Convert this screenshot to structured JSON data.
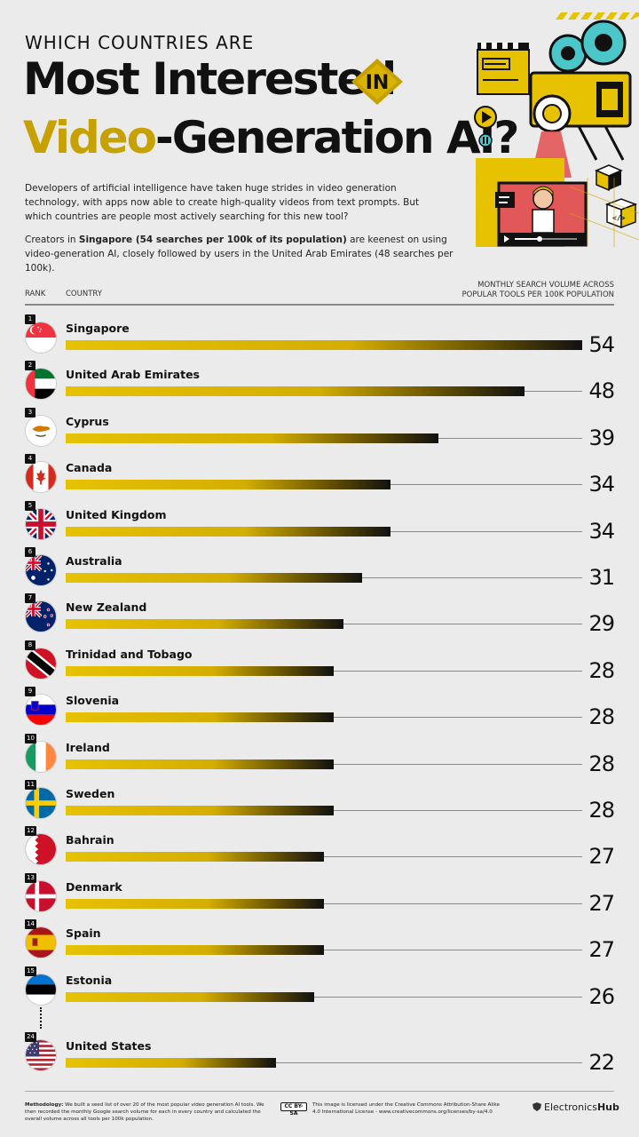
{
  "header": {
    "kicker": "WHICH COUNTRIES ARE",
    "title_line1": "Most Interested",
    "title_in": "IN",
    "title_accent": "Video",
    "title_rest": "-Generation AI?",
    "intro": "Developers of artificial intelligence have taken huge strides in video generation technology, with apps now able to create high-quality videos from text prompts. But which countries are people most actively searching for this new tool?",
    "intro2_pre": "Creators in ",
    "intro2_bold": "Singapore (54 searches per 100k of its population)",
    "intro2_post": " are keenest on using video-generation AI, closely followed by users in the United Arab Emirates (48 searches per 100k)."
  },
  "columns": {
    "rank": "RANK",
    "country": "COUNTRY",
    "value_line1": "MONTHLY SEARCH VOLUME ACROSS",
    "value_line2": "POPULAR TOOLS PER 100K POPULATION"
  },
  "chart_data": {
    "type": "bar",
    "orientation": "horizontal",
    "title": "Most Interested in Video-Generation AI?",
    "xlabel": "Monthly search volume across popular tools per 100k population",
    "ylabel": "Country",
    "xlim": [
      0,
      54
    ],
    "categories": [
      "Singapore",
      "United Arab Emirates",
      "Cyprus",
      "Canada",
      "United Kingdom",
      "Australia",
      "New Zealand",
      "Trinidad and Tobago",
      "Slovenia",
      "Ireland",
      "Sweden",
      "Bahrain",
      "Denmark",
      "Spain",
      "Estonia",
      "United States"
    ],
    "ranks": [
      "1",
      "2",
      "3",
      "4",
      "5",
      "6",
      "7",
      "8",
      "9",
      "10",
      "11",
      "12",
      "13",
      "14",
      "15",
      "24"
    ],
    "values": [
      54,
      48,
      39,
      34,
      34,
      31,
      29,
      28,
      28,
      28,
      28,
      27,
      27,
      27,
      26,
      22
    ],
    "flags": [
      "singapore-flag",
      "uae-flag",
      "cyprus-flag",
      "canada-flag",
      "uk-flag",
      "australia-flag",
      "new-zealand-flag",
      "trinidad-flag",
      "slovenia-flag",
      "ireland-flag",
      "sweden-flag",
      "bahrain-flag",
      "denmark-flag",
      "spain-flag",
      "estonia-flag",
      "usa-flag"
    ]
  },
  "footer": {
    "method_label": "Methodology:",
    "method_text": " We built a seed list of over 20 of the most popular video generation AI tools. We then recorded the monthly Google search volume for each in every country and calculated the overall volume across all tools per 100k population.",
    "cc_badge": "CC BY-SA",
    "license": "This image is licensed under the Creative Commons Attribution-Share Alike 4.0 International License - www.creativecommons.org/licenses/by-sa/4.0",
    "brand_a": "Electronics",
    "brand_b": "Hub"
  },
  "colors": {
    "accent": "#c7a100",
    "bar_start": "#e6c200",
    "bar_end": "#111111",
    "background": "#ecebeb"
  }
}
